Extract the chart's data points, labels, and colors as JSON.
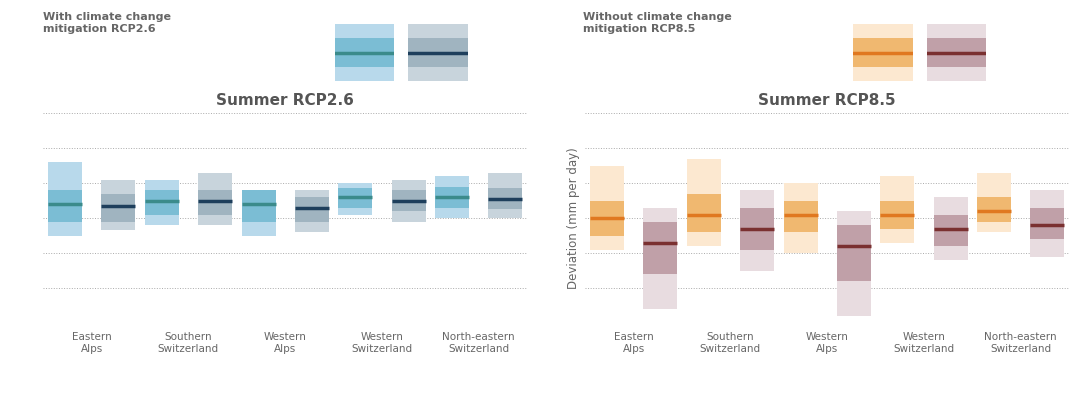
{
  "left_title": "Summer RCP2.6",
  "right_title": "Summer RCP8.5",
  "left_legend_title": "With climate change\nmitigation RCP2.6",
  "right_legend_title": "Without climate change\nmitigation RCP8.5",
  "ylabel": "Deviation (mm per day)",
  "categories": [
    "Eastern\nAlps",
    "Southern\nSwitzerland",
    "Western\nAlps",
    "Western\nSwitzerland",
    "North-eastern\nSwitzerland"
  ],
  "ylim": [
    -0.8,
    0.4
  ],
  "yticks": [
    -0.8,
    -0.6,
    -0.4,
    -0.2,
    0.0,
    0.2,
    0.4
  ],
  "left_color1_box": "#b8d9eb",
  "left_color1_med": "#3b8b8b",
  "left_color1_iqr": "#7bbdd4",
  "left_color2_box": "#c8d4dc",
  "left_color2_med": "#1e3f5c",
  "left_color2_iqr": "#a0b4c0",
  "right_color1_box": "#fce8d0",
  "right_color1_med": "#e07820",
  "right_color1_iqr": "#f0b870",
  "right_color2_box": "#e8dce0",
  "right_color2_med": "#7a3030",
  "right_color2_iqr": "#c0a0a8",
  "left_data": [
    {
      "near": {
        "med": -0.12,
        "q1": -0.22,
        "q3": -0.04,
        "min": -0.3,
        "max": 0.12
      },
      "far": {
        "med": -0.13,
        "q1": -0.22,
        "q3": -0.06,
        "min": -0.27,
        "max": 0.02
      }
    },
    {
      "near": {
        "med": -0.1,
        "q1": -0.18,
        "q3": -0.04,
        "min": -0.24,
        "max": 0.02
      },
      "far": {
        "med": -0.1,
        "q1": -0.18,
        "q3": -0.04,
        "min": -0.24,
        "max": 0.06
      }
    },
    {
      "near": {
        "med": -0.12,
        "q1": -0.22,
        "q3": -0.04,
        "min": -0.3,
        "max": -0.04
      },
      "far": {
        "med": -0.14,
        "q1": -0.22,
        "q3": -0.08,
        "min": -0.28,
        "max": -0.04
      }
    },
    {
      "near": {
        "med": -0.08,
        "q1": -0.14,
        "q3": -0.03,
        "min": -0.18,
        "max": 0.0
      },
      "far": {
        "med": -0.1,
        "q1": -0.16,
        "q3": -0.04,
        "min": -0.22,
        "max": 0.02
      }
    },
    {
      "near": {
        "med": -0.08,
        "q1": -0.14,
        "q3": -0.02,
        "min": -0.2,
        "max": 0.04
      },
      "far": {
        "med": -0.09,
        "q1": -0.15,
        "q3": -0.03,
        "min": -0.2,
        "max": 0.06
      }
    }
  ],
  "right_data": [
    {
      "near": {
        "med": -0.2,
        "q1": -0.3,
        "q3": -0.1,
        "min": -0.38,
        "max": 0.1
      },
      "far": {
        "med": -0.34,
        "q1": -0.52,
        "q3": -0.22,
        "min": -0.72,
        "max": -0.14
      }
    },
    {
      "near": {
        "med": -0.18,
        "q1": -0.28,
        "q3": -0.06,
        "min": -0.36,
        "max": 0.14
      },
      "far": {
        "med": -0.26,
        "q1": -0.38,
        "q3": -0.14,
        "min": -0.5,
        "max": -0.04
      }
    },
    {
      "near": {
        "med": -0.18,
        "q1": -0.28,
        "q3": -0.1,
        "min": -0.4,
        "max": 0.0
      },
      "far": {
        "med": -0.36,
        "q1": -0.56,
        "q3": -0.24,
        "min": -0.76,
        "max": -0.16
      }
    },
    {
      "near": {
        "med": -0.18,
        "q1": -0.26,
        "q3": -0.1,
        "min": -0.34,
        "max": 0.04
      },
      "far": {
        "med": -0.26,
        "q1": -0.36,
        "q3": -0.18,
        "min": -0.44,
        "max": -0.08
      }
    },
    {
      "near": {
        "med": -0.16,
        "q1": -0.22,
        "q3": -0.08,
        "min": -0.28,
        "max": 0.06
      },
      "far": {
        "med": -0.24,
        "q1": -0.32,
        "q3": -0.14,
        "min": -0.42,
        "max": -0.04
      }
    }
  ],
  "background_color": "#ffffff",
  "grid_color": "#aaaaaa",
  "text_color": "#666666",
  "title_color": "#555555"
}
